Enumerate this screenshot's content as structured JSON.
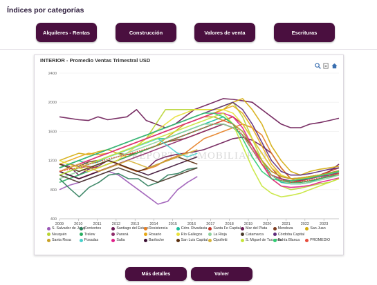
{
  "page": {
    "title": "Índices por categorías"
  },
  "categories": [
    {
      "label": "Alquileres - Rentas"
    },
    {
      "label": "Construcción"
    },
    {
      "label": "Valores de venta"
    },
    {
      "label": "Escrituras"
    }
  ],
  "chart": {
    "title": "INTERIOR - Promedio Ventas Trimestral USD",
    "watermark": "REPORTE INMOBILIARIO",
    "tools": [
      "zoom-icon",
      "download-icon",
      "home-icon"
    ]
  },
  "chart_data": {
    "type": "line",
    "title": "INTERIOR - Promedio Ventas Trimestral USD",
    "xlabel": "",
    "ylabel": "",
    "x_ticks": [
      "2009",
      "2010",
      "2011",
      "2012",
      "2013",
      "2014",
      "2015",
      "2016",
      "2017",
      "2018",
      "2019",
      "2020",
      "2021",
      "2022",
      "2023"
    ],
    "y_ticks": [
      400,
      800,
      1200,
      1600,
      2000,
      2400
    ],
    "ylim": [
      400,
      2400
    ],
    "xlim": [
      2009,
      2023.8
    ],
    "grid": "horizontal",
    "legend_position": "bottom",
    "series": [
      {
        "name": "S. Salvador de Jujuy",
        "color": "#9b59b6",
        "start": 2009,
        "end": 2016.3,
        "values": [
          800,
          860,
          900,
          950,
          1000,
          1050,
          1000,
          900,
          800,
          700,
          600,
          640,
          800,
          900,
          980
        ]
      },
      {
        "name": "Corrientes",
        "color": "#2e7d5b",
        "start": 2009,
        "end": 2016.3,
        "values": [
          950,
          820,
          700,
          830,
          900,
          1000,
          1020,
          950,
          950,
          850,
          900,
          1000,
          1020,
          1080,
          1100
        ]
      },
      {
        "name": "Santiago del Estero",
        "color": "#6b1a55",
        "start": 2009,
        "end": 2023.8,
        "values": [
          1150,
          1120,
          1000,
          1080,
          1120,
          1200,
          1160,
          1100,
          1050,
          1080,
          1200,
          1250,
          1280,
          1300,
          1320,
          1350,
          1400,
          1450,
          1500,
          1520,
          1480,
          1400,
          1300,
          1100,
          950,
          950,
          980,
          1000,
          1050,
          1150
        ]
      },
      {
        "name": "Resistencia",
        "color": "#e67e22",
        "start": 2009,
        "end": 2023.8,
        "values": [
          1050,
          1000,
          950,
          1000,
          1050,
          1100,
          1150,
          1100,
          1050,
          1080,
          1120,
          1200,
          1250,
          1300,
          1400,
          1500,
          1550,
          1600,
          1650,
          1700,
          1650,
          1550,
          1300,
          1100,
          950,
          900,
          920,
          950,
          980,
          1020
        ]
      },
      {
        "name": "Cdro. Rivadavia",
        "color": "#1abc9c",
        "start": 2009,
        "end": 2023.8,
        "values": [
          1100,
          1150,
          1200,
          1150,
          1180,
          1250,
          1300,
          1350,
          1400,
          1450,
          1500,
          1500,
          1550,
          1600,
          1650,
          1700,
          1750,
          1800,
          1700,
          1600,
          1400,
          1200,
          1000,
          900,
          880,
          880,
          900,
          950,
          1000,
          1050
        ]
      },
      {
        "name": "Santa Fe Capital",
        "color": "#c0392b",
        "start": 2009,
        "end": 2023.8,
        "values": [
          1000,
          1050,
          1100,
          1120,
          1100,
          1150,
          1200,
          1250,
          1300,
          1350,
          1400,
          1450,
          1500,
          1550,
          1600,
          1650,
          1700,
          1750,
          1800,
          1700,
          1500,
          1300,
          1100,
          950,
          900,
          920,
          950,
          1000,
          1050,
          1100
        ]
      },
      {
        "name": "Mar del Plata",
        "color": "#6b1a55",
        "start": 2009,
        "end": 2023.8,
        "values": [
          1800,
          1780,
          1760,
          1750,
          1800,
          1760,
          1780,
          1800,
          1900,
          1750,
          1700,
          1650,
          1700,
          1800,
          1900,
          1950,
          2000,
          2050,
          2040,
          2020,
          2000,
          1900,
          1800,
          1700,
          1650,
          1650,
          1700,
          1720,
          1750,
          1780
        ]
      },
      {
        "name": "Mendoza",
        "color": "#7d3c1f",
        "start": 2009,
        "end": 2023.8,
        "values": [
          1100,
          1150,
          1120,
          1180,
          1200,
          1250,
          1300,
          1280,
          1300,
          1350,
          1400,
          1450,
          1480,
          1500,
          1550,
          1600,
          1650,
          1700,
          1650,
          1550,
          1400,
          1200,
          1050,
          980,
          950,
          960,
          980,
          1000,
          1030,
          1060
        ]
      },
      {
        "name": "San Juan",
        "color": "#d4ac0d",
        "start": 2009,
        "end": 2023.8,
        "values": [
          1200,
          1250,
          1300,
          1280,
          1320,
          1350,
          1300,
          1250,
          1300,
          1350,
          1400,
          1500,
          1600,
          1700,
          1750,
          1800,
          1850,
          1900,
          2000,
          2050,
          1900,
          1700,
          1400,
          1200,
          1050,
          1000,
          1050,
          1080,
          1100,
          1120
        ]
      },
      {
        "name": "Neuquén",
        "color": "#b8d432",
        "start": 2009,
        "end": 2023.8,
        "values": [
          1000,
          1050,
          1100,
          1150,
          1200,
          1250,
          1300,
          1350,
          1400,
          1500,
          1700,
          1900,
          1900,
          1900,
          1900,
          1900,
          1900,
          1950,
          2000,
          1800,
          1500,
          1200,
          950,
          850,
          800,
          820,
          850,
          880,
          900,
          950
        ]
      },
      {
        "name": "Trelew",
        "color": "#27ae60",
        "start": 2009,
        "end": 2023.8,
        "values": [
          900,
          950,
          1000,
          1050,
          1100,
          1150,
          1200,
          1250,
          1300,
          1350,
          1400,
          1450,
          1500,
          1550,
          1600,
          1650,
          1700,
          1700,
          1650,
          1550,
          1350,
          1150,
          1000,
          920,
          900,
          900,
          920,
          950,
          980,
          1000
        ]
      },
      {
        "name": "Paraná",
        "color": "#8e2a6a",
        "start": 2009,
        "end": 2023.8,
        "values": [
          1050,
          1000,
          950,
          1000,
          1050,
          1100,
          1150,
          1200,
          1250,
          1300,
          1350,
          1400,
          1450,
          1500,
          1550,
          1600,
          1650,
          1700,
          1650,
          1550,
          1350,
          1150,
          1000,
          950,
          920,
          930,
          950,
          980,
          1000,
          1030
        ]
      },
      {
        "name": "Rosario",
        "color": "#e6a817",
        "start": 2009,
        "end": 2023.8,
        "values": [
          1150,
          1200,
          1250,
          1300,
          1280,
          1300,
          1350,
          1400,
          1450,
          1500,
          1550,
          1600,
          1650,
          1700,
          1750,
          1800,
          1850,
          1900,
          1950,
          1850,
          1650,
          1400,
          1150,
          1000,
          950,
          960,
          980,
          1000,
          1020,
          1050
        ]
      },
      {
        "name": "Río Gallegos",
        "color": "#e8e03a",
        "start": 2009,
        "end": 2023.8,
        "values": [
          1200,
          1150,
          1100,
          1050,
          1100,
          1150,
          1200,
          1300,
          1400,
          1500,
          1600,
          1700,
          1800,
          1850,
          1900,
          1900,
          1900,
          1900,
          1850,
          1700,
          1500,
          1300,
          1100,
          1000,
          950,
          950,
          970,
          1000,
          1020,
          1050
        ]
      },
      {
        "name": "La Rioja",
        "color": "#8fd19e",
        "start": 2009,
        "end": 2023.8,
        "values": [
          950,
          1000,
          1050,
          1100,
          1150,
          1200,
          1250,
          1300,
          1350,
          1400,
          1450,
          1500,
          1550,
          1600,
          1650,
          1700,
          1700,
          1700,
          1650,
          1550,
          1350,
          1150,
          1000,
          920,
          880,
          880,
          900,
          930,
          960,
          1000
        ]
      },
      {
        "name": "Catamarca",
        "color": "#4a3a2a",
        "start": 2009,
        "end": 2016.3,
        "values": [
          1000,
          950,
          900,
          950,
          1000,
          1050,
          1100,
          1050,
          1000,
          950,
          900,
          950,
          1000,
          1050,
          1100
        ]
      },
      {
        "name": "Córdoba Capital",
        "color": "#5d2a7a",
        "start": 2009,
        "end": 2023.8,
        "values": [
          1100,
          1150,
          1200,
          1250,
          1300,
          1350,
          1400,
          1450,
          1500,
          1550,
          1600,
          1650,
          1700,
          1750,
          1800,
          1850,
          1900,
          1950,
          2000,
          1900,
          1700,
          1450,
          1200,
          1050,
          1000,
          1000,
          1020,
          1050,
          1080,
          1100
        ]
      },
      {
        "name": "Santa Rosa",
        "color": "#c9a227",
        "start": 2009,
        "end": 2023.8,
        "values": [
          1050,
          1100,
          1150,
          1200,
          1250,
          1300,
          1350,
          1400,
          1450,
          1500,
          1550,
          1600,
          1650,
          1700,
          1750,
          1800,
          1800,
          1750,
          1700,
          1600,
          1400,
          1200,
          1050,
          980,
          950,
          960,
          980,
          1000,
          1030,
          1060
        ]
      },
      {
        "name": "Posadas",
        "color": "#48d1cc",
        "start": 2009,
        "end": 2016.3,
        "values": [
          1000,
          1050,
          1100,
          1150,
          1200,
          1250,
          1300,
          1350,
          1400,
          1450,
          1500,
          1400,
          1300,
          1250,
          1300
        ]
      },
      {
        "name": "Salta",
        "color": "#e0208a",
        "start": 2009,
        "end": 2023.8,
        "values": [
          1050,
          1100,
          1150,
          1200,
          1250,
          1300,
          1350,
          1400,
          1450,
          1500,
          1550,
          1600,
          1650,
          1700,
          1750,
          1800,
          1850,
          1850,
          1800,
          1650,
          1400,
          1150,
          950,
          850,
          830,
          840,
          860,
          900,
          930,
          960
        ]
      },
      {
        "name": "Bariloche",
        "color": "#3b1033",
        "start": 2009,
        "end": 2016.3,
        "values": [
          1050,
          1000,
          950,
          1000,
          1050,
          1100,
          1150,
          1100,
          1050,
          1000,
          1050,
          1100,
          1150,
          1200,
          1250
        ]
      },
      {
        "name": "San Luis Capital",
        "color": "#5a2e0e",
        "start": 2009,
        "end": 2016.3,
        "values": [
          1150,
          1100,
          1050,
          1100,
          1150,
          1200,
          1150,
          1100,
          1050,
          1100,
          1150,
          1200,
          1250,
          1200,
          1150
        ]
      },
      {
        "name": "Cipolletti",
        "color": "#d7b33a",
        "start": 2009,
        "end": 2016.3,
        "values": [
          1050,
          1100,
          1150,
          1100,
          1050,
          1100,
          1150,
          1200,
          1150,
          1100,
          1150,
          1200,
          1250,
          1300,
          1350
        ]
      },
      {
        "name": "S. Miguel de Tucumán",
        "color": "#c7e53a",
        "start": 2009,
        "end": 2023.8,
        "values": [
          1000,
          1050,
          1100,
          1150,
          1200,
          1250,
          1300,
          1350,
          1400,
          1450,
          1500,
          1550,
          1600,
          1650,
          1700,
          1750,
          1800,
          1850,
          1700,
          1400,
          1100,
          850,
          750,
          700,
          720,
          750,
          800,
          850,
          900,
          950
        ]
      },
      {
        "name": "Bahía Blanca",
        "color": "#2ecc71",
        "start": 2009,
        "end": 2023.8,
        "values": [
          1100,
          1150,
          1200,
          1250,
          1300,
          1350,
          1400,
          1450,
          1500,
          1550,
          1600,
          1650,
          1700,
          1750,
          1800,
          1850,
          1850,
          1800,
          1700,
          1500,
          1250,
          1050,
          950,
          920,
          920,
          940,
          960,
          990,
          1020,
          1050
        ]
      },
      {
        "name": "PROMEDIO",
        "color": "#e74c3c",
        "start": 2009,
        "end": 2023.8,
        "values": [
          1050,
          1080,
          1100,
          1150,
          1180,
          1220,
          1250,
          1280,
          1320,
          1360,
          1400,
          1450,
          1500,
          1550,
          1600,
          1650,
          1700,
          1750,
          1700,
          1550,
          1350,
          1150,
          1000,
          930,
          900,
          910,
          930,
          960,
          990,
          1020
        ]
      }
    ]
  },
  "actions": {
    "details": "Más detalles",
    "back": "Volver"
  }
}
